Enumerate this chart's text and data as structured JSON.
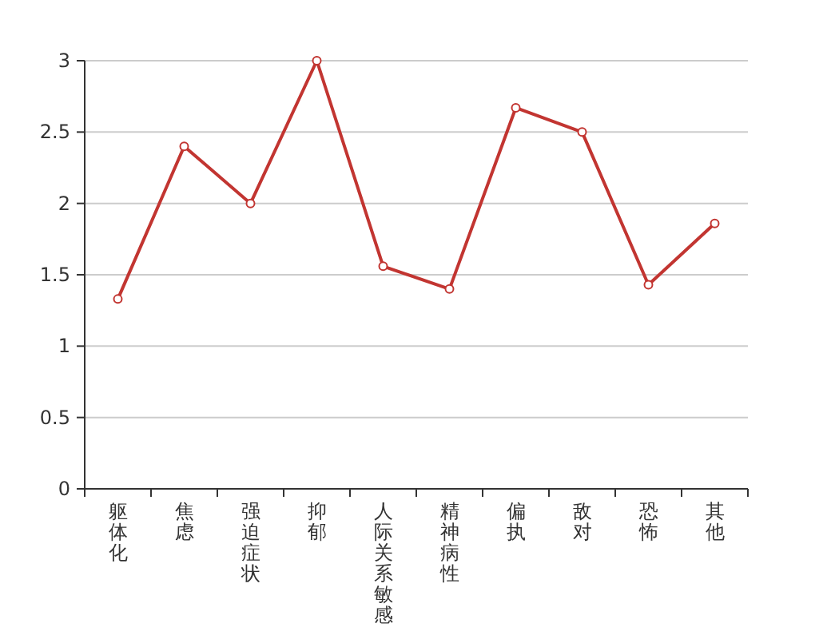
{
  "chart_data": {
    "type": "line",
    "categories": [
      "躯体化",
      "焦虑",
      "强迫症状",
      "抑郁",
      "人际关系敏感",
      "精神病性",
      "偏执",
      "敌对",
      "恐怖",
      "其他"
    ],
    "values": [
      1.33,
      2.4,
      2.0,
      3.0,
      1.56,
      1.4,
      2.67,
      2.5,
      1.43,
      1.86
    ],
    "color": "#c23531",
    "ylim": [
      0,
      3
    ],
    "yticks": [
      0,
      0.5,
      1,
      1.5,
      2,
      2.5,
      3
    ],
    "grid": "y",
    "marker": "circle",
    "line_style": "solid"
  }
}
